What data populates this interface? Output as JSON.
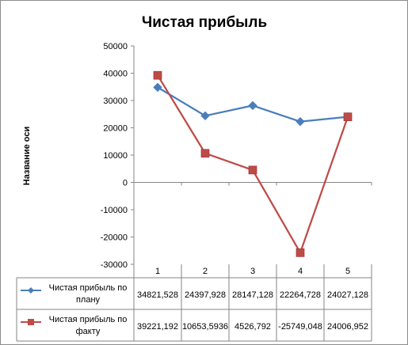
{
  "chart_data": {
    "type": "line",
    "title": "Чистая прибыль",
    "ylabel": "Название оси",
    "xlabel": "",
    "ylim": [
      -30000,
      50000
    ],
    "ytick_step": 10000,
    "y_ticks": [
      "50000",
      "40000",
      "30000",
      "20000",
      "10000",
      "0",
      "-10000",
      "-20000",
      "-30000"
    ],
    "categories": [
      "1",
      "2",
      "3",
      "4",
      "5"
    ],
    "grid": false,
    "legend": "data-table",
    "series": [
      {
        "name_lines": [
          "Чистая прибыль по",
          "плану"
        ],
        "values": [
          34821.528,
          24397.928,
          28147.128,
          22264.728,
          24027.128
        ],
        "labels": [
          "34821,528",
          "24397,928",
          "28147,128",
          "22264,728",
          "24027,128"
        ],
        "color": "#4a7ebb",
        "marker": "diamond"
      },
      {
        "name_lines": [
          "Чистая прибыль по",
          "факту"
        ],
        "values": [
          39221.192,
          10653.5936,
          4526.792,
          -25749.048,
          24006.952
        ],
        "labels": [
          "39221,192",
          "10653,5936",
          "4526,792",
          "-25749,048",
          "24006,952"
        ],
        "color": "#be4b48",
        "marker": "square"
      }
    ]
  }
}
